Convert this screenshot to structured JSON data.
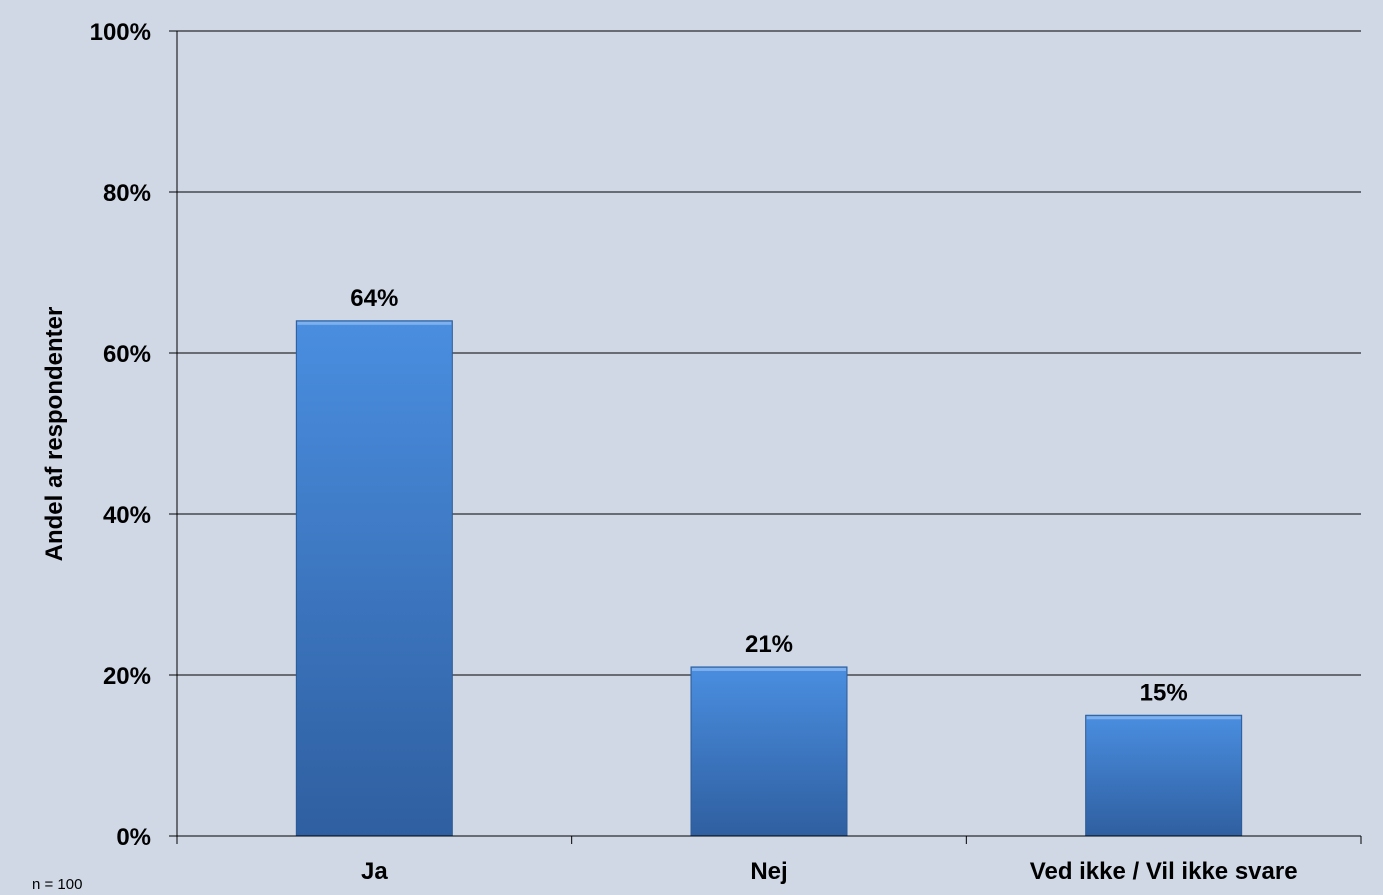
{
  "chart_data": {
    "type": "bar",
    "categories": [
      "Ja",
      "Nej",
      "Ved ikke / Vil ikke svare"
    ],
    "values": [
      64,
      21,
      15
    ],
    "data_labels": [
      "64%",
      "21%",
      "15%"
    ],
    "title": "",
    "xlabel": "",
    "ylabel": "Andel af respondenter",
    "ylim": [
      0,
      100
    ],
    "yticks": [
      0,
      20,
      40,
      60,
      80,
      100
    ],
    "ytick_labels": [
      "0%",
      "20%",
      "40%",
      "60%",
      "80%",
      "100%"
    ],
    "grid": true,
    "legend": "none"
  },
  "footnote": "n = 100",
  "colors": {
    "background": "#d0d8e6",
    "bar_light": "#4a8ee0",
    "bar_dark": "#2f5fa0",
    "gridline": "#000000"
  }
}
